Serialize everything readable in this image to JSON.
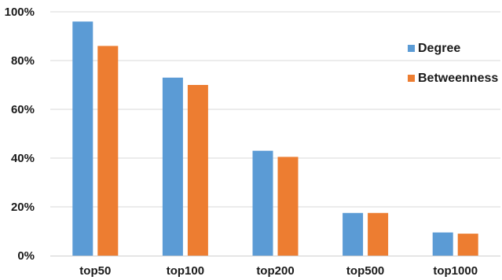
{
  "chart_data": {
    "type": "bar",
    "categories": [
      "top50",
      "top100",
      "top200",
      "top500",
      "top1000"
    ],
    "series": [
      {
        "name": "Degree",
        "color": "#5b9bd5",
        "values": [
          96,
          73,
          43,
          17.5,
          9.5
        ]
      },
      {
        "name": "Betweenness",
        "color": "#ed7d31",
        "values": [
          86,
          70,
          40.5,
          17.5,
          9
        ]
      }
    ],
    "yticks": [
      "0%",
      "20%",
      "40%",
      "60%",
      "80%",
      "100%"
    ],
    "ylim": [
      0,
      100
    ],
    "yunit": "%",
    "grid": true,
    "legend_position": "right"
  }
}
